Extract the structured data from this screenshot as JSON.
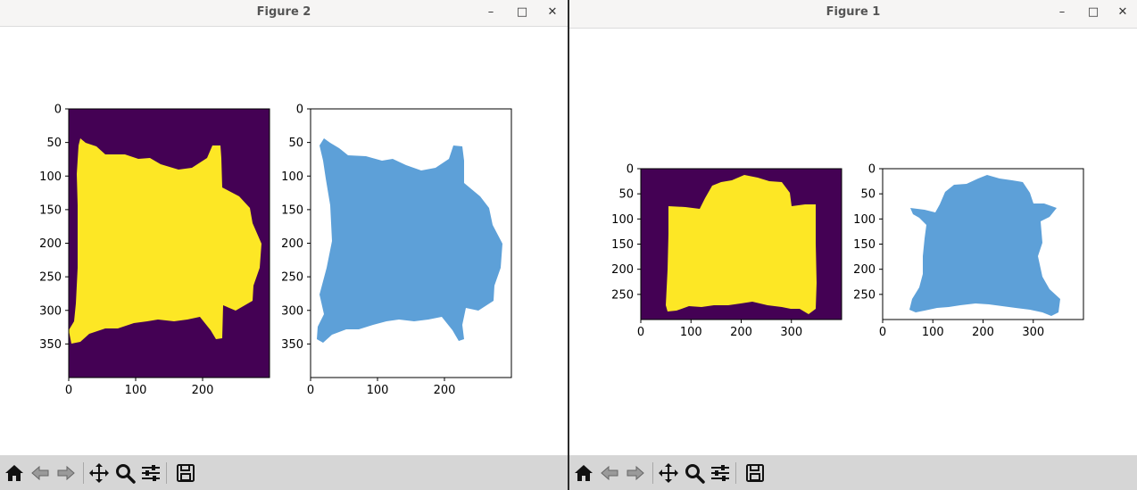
{
  "windows": [
    {
      "id": "figure-2",
      "title": "Figure 2",
      "controls": {
        "minimize": "–",
        "maximize": "□",
        "close": "✕"
      },
      "axes": [
        {
          "kind": "mask",
          "image_shape": [
            400,
            300
          ],
          "xticks": [
            "0",
            "100",
            "200"
          ],
          "yticks": [
            "0",
            "50",
            "100",
            "150",
            "200",
            "250",
            "300",
            "350"
          ],
          "background": "#440154",
          "foreground": "#fde725"
        },
        {
          "kind": "photo",
          "image_shape": [
            400,
            300
          ],
          "xticks": [
            "0",
            "100",
            "200"
          ],
          "yticks": [
            "0",
            "50",
            "100",
            "150",
            "200",
            "250",
            "300",
            "350"
          ],
          "background": "#ffffff",
          "foreground": "#5da0d8"
        }
      ]
    },
    {
      "id": "figure-1",
      "title": "Figure 1",
      "controls": {
        "minimize": "–",
        "maximize": "□",
        "close": "✕"
      },
      "axes": [
        {
          "kind": "mask",
          "image_shape": [
            300,
            400
          ],
          "xticks": [
            "0",
            "100",
            "200",
            "300"
          ],
          "yticks": [
            "0",
            "50",
            "100",
            "150",
            "200",
            "250"
          ],
          "background": "#440154",
          "foreground": "#fde725"
        },
        {
          "kind": "photo",
          "image_shape": [
            300,
            400
          ],
          "xticks": [
            "0",
            "100",
            "200",
            "300"
          ],
          "yticks": [
            "0",
            "50",
            "100",
            "150",
            "200",
            "250"
          ],
          "background": "#ffffff",
          "foreground": "#5da0d8"
        }
      ]
    }
  ],
  "toolbar": {
    "buttons": [
      {
        "name": "home-icon",
        "label": "Home"
      },
      {
        "name": "back-icon",
        "label": "Back"
      },
      {
        "name": "forward-icon",
        "label": "Forward"
      },
      {
        "name": "pan-icon",
        "label": "Pan"
      },
      {
        "name": "zoom-icon",
        "label": "Zoom"
      },
      {
        "name": "subplots-icon",
        "label": "Configure subplots"
      },
      {
        "name": "save-icon",
        "label": "Save"
      }
    ]
  }
}
